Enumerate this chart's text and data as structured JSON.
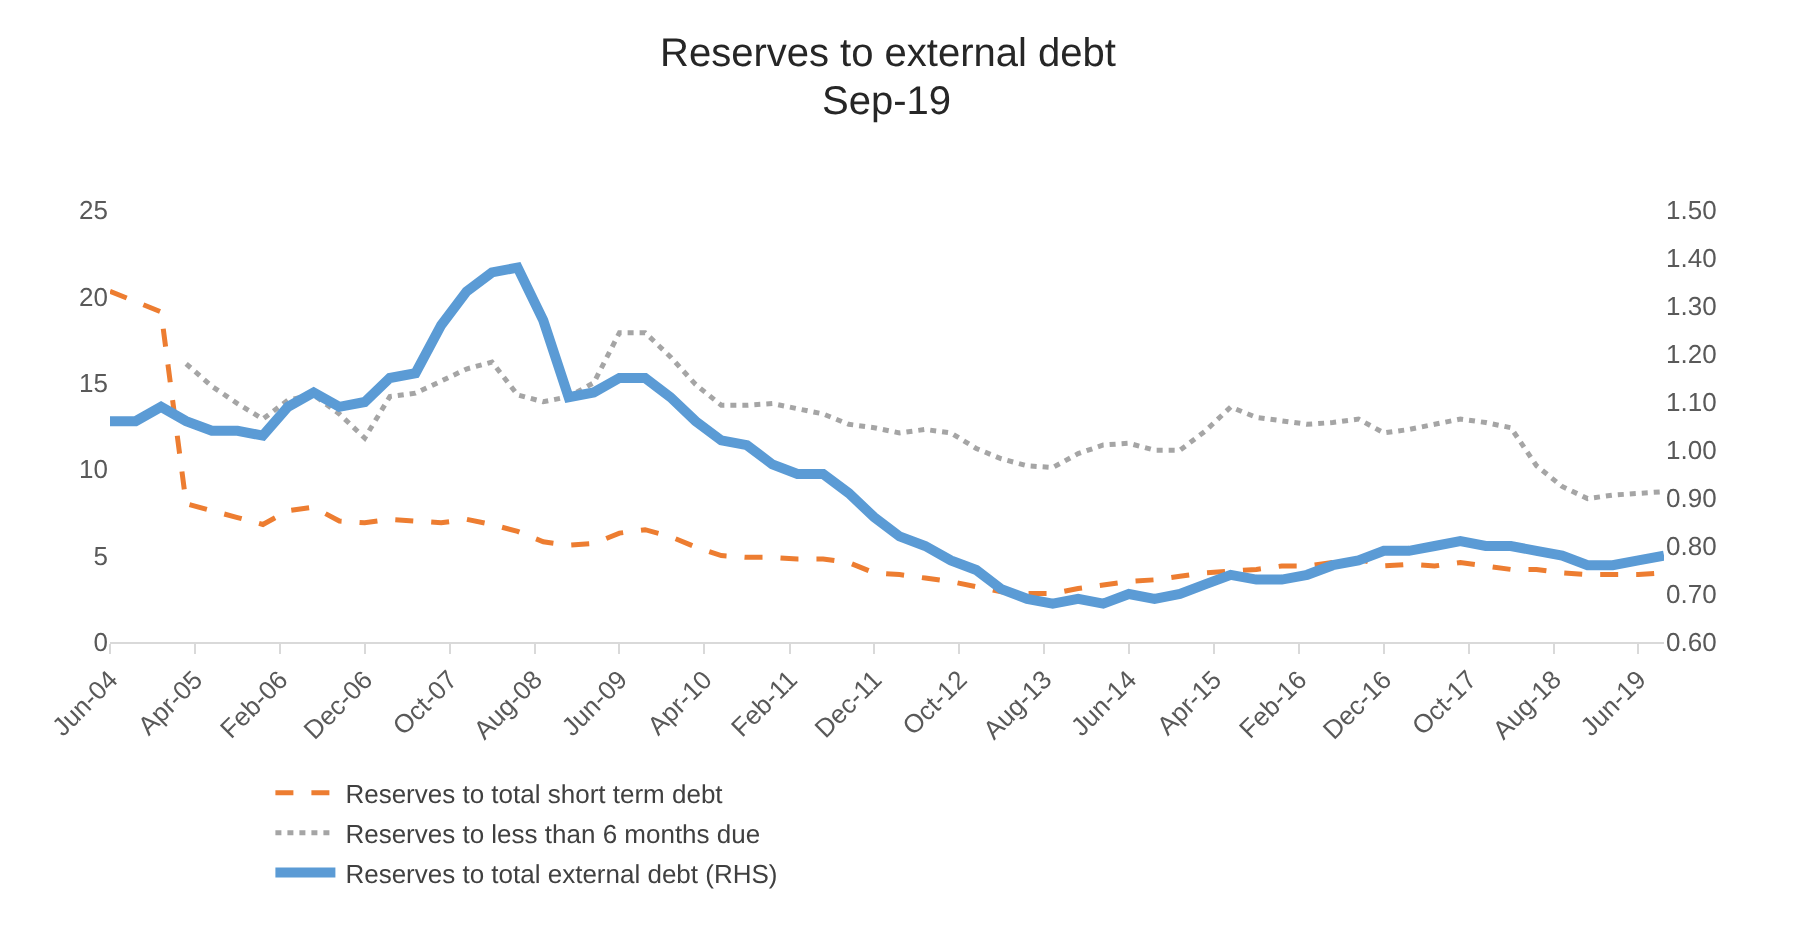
{
  "chart_data": {
    "type": "line",
    "title": "Reserves to external debt",
    "subtitle": "Sep-19",
    "x": [
      "2004-06",
      "2004-09",
      "2004-12",
      "2005-03",
      "2005-06",
      "2005-09",
      "2005-12",
      "2006-03",
      "2006-06",
      "2006-09",
      "2006-12",
      "2007-03",
      "2007-06",
      "2007-09",
      "2007-12",
      "2008-03",
      "2008-06",
      "2008-09",
      "2008-12",
      "2009-03",
      "2009-06",
      "2009-09",
      "2009-12",
      "2010-03",
      "2010-06",
      "2010-09",
      "2010-12",
      "2011-03",
      "2011-06",
      "2011-09",
      "2011-12",
      "2012-03",
      "2012-06",
      "2012-09",
      "2012-12",
      "2013-03",
      "2013-06",
      "2013-09",
      "2013-12",
      "2014-03",
      "2014-06",
      "2014-09",
      "2014-12",
      "2015-03",
      "2015-06",
      "2015-09",
      "2015-12",
      "2016-03",
      "2016-06",
      "2016-09",
      "2016-12",
      "2017-03",
      "2017-06",
      "2017-09",
      "2017-12",
      "2018-03",
      "2018-06",
      "2018-09",
      "2018-12",
      "2019-03",
      "2019-06",
      "2019-09"
    ],
    "series": [
      {
        "name": "Reserves to total short term debt",
        "color": "#ed7d31",
        "line_style": "dashed",
        "values": [
          20.3,
          19.7,
          19.1,
          8.0,
          7.6,
          7.2,
          6.8,
          7.6,
          7.8,
          7.0,
          6.9,
          7.1,
          7.0,
          6.9,
          7.1,
          6.8,
          6.4,
          5.8,
          5.6,
          5.7,
          6.3,
          6.5,
          6.1,
          5.5,
          5.0,
          4.9,
          4.9,
          4.8,
          4.8,
          4.6,
          4.0,
          3.9,
          3.7,
          3.5,
          3.2,
          2.9,
          2.8,
          2.8,
          3.1,
          3.3,
          3.5,
          3.6,
          3.8,
          4.0,
          4.1,
          4.2,
          4.4,
          4.4,
          4.6,
          4.8,
          4.4,
          4.5,
          4.4,
          4.6,
          4.4,
          4.2,
          4.2,
          4.0,
          3.9,
          3.9,
          3.9,
          4.0
        ]
      },
      {
        "name": "Reserves to less than 6 months due",
        "color": "#a5a5a5",
        "line_style": "dotted",
        "values": [
          null,
          null,
          null,
          16.1,
          14.8,
          13.8,
          12.9,
          14.0,
          14.3,
          13.2,
          11.8,
          14.2,
          14.4,
          15.1,
          15.8,
          16.2,
          14.3,
          13.9,
          14.2,
          15.0,
          17.9,
          17.9,
          16.5,
          14.9,
          13.7,
          13.7,
          13.8,
          13.5,
          13.2,
          12.6,
          12.4,
          12.1,
          12.3,
          12.1,
          11.2,
          10.6,
          10.2,
          10.1,
          10.9,
          11.4,
          11.5,
          11.1,
          11.1,
          12.2,
          13.6,
          13.0,
          12.8,
          12.6,
          12.7,
          12.9,
          12.1,
          12.3,
          12.6,
          12.9,
          12.7,
          12.4,
          10.2,
          9.0,
          8.3,
          8.5,
          8.6,
          8.7
        ]
      },
      {
        "name": "Reserves to total external debt (RHS)",
        "color": "#5b9bd5",
        "line_style": "solid",
        "axis": "y2",
        "values": [
          1.06,
          1.06,
          1.09,
          1.06,
          1.04,
          1.04,
          1.03,
          1.09,
          1.12,
          1.09,
          1.1,
          1.15,
          1.16,
          1.26,
          1.33,
          1.37,
          1.38,
          1.27,
          1.11,
          1.12,
          1.15,
          1.15,
          1.11,
          1.06,
          1.02,
          1.01,
          0.97,
          0.95,
          0.95,
          0.91,
          0.86,
          0.82,
          0.8,
          0.77,
          0.75,
          0.71,
          0.69,
          0.68,
          0.69,
          0.68,
          0.7,
          0.69,
          0.7,
          0.72,
          0.74,
          0.73,
          0.73,
          0.74,
          0.76,
          0.77,
          0.79,
          0.79,
          0.8,
          0.81,
          0.8,
          0.8,
          0.79,
          0.78,
          0.76,
          0.76,
          0.77,
          0.78
        ]
      }
    ],
    "xlim": [
      "2004-06",
      "2019-09"
    ],
    "xticks": [
      {
        "value": "2004-06",
        "label": "Jun-04"
      },
      {
        "value": "2005-04",
        "label": "Apr-05"
      },
      {
        "value": "2006-02",
        "label": "Feb-06"
      },
      {
        "value": "2006-12",
        "label": "Dec-06"
      },
      {
        "value": "2007-10",
        "label": "Oct-07"
      },
      {
        "value": "2008-08",
        "label": "Aug-08"
      },
      {
        "value": "2009-06",
        "label": "Jun-09"
      },
      {
        "value": "2010-04",
        "label": "Apr-10"
      },
      {
        "value": "2011-02",
        "label": "Feb-11"
      },
      {
        "value": "2011-12",
        "label": "Dec-11"
      },
      {
        "value": "2012-10",
        "label": "Oct-12"
      },
      {
        "value": "2013-08",
        "label": "Aug-13"
      },
      {
        "value": "2014-06",
        "label": "Jun-14"
      },
      {
        "value": "2015-04",
        "label": "Apr-15"
      },
      {
        "value": "2016-02",
        "label": "Feb-16"
      },
      {
        "value": "2016-12",
        "label": "Dec-16"
      },
      {
        "value": "2017-10",
        "label": "Oct-17"
      },
      {
        "value": "2018-08",
        "label": "Aug-18"
      },
      {
        "value": "2019-06",
        "label": "Jun-19"
      }
    ],
    "ylim": [
      0,
      25
    ],
    "yticks": [
      0,
      5,
      10,
      15,
      20,
      25
    ],
    "y2lim": [
      0.6,
      1.5
    ],
    "y2ticks": [
      {
        "value": 0.6,
        "label": "0.60"
      },
      {
        "value": 0.7,
        "label": "0.70"
      },
      {
        "value": 0.8,
        "label": "0.80"
      },
      {
        "value": 0.9,
        "label": "0.90"
      },
      {
        "value": 1.0,
        "label": "1.00"
      },
      {
        "value": 1.1,
        "label": "1.10"
      },
      {
        "value": 1.2,
        "label": "1.20"
      },
      {
        "value": 1.3,
        "label": "1.30"
      },
      {
        "value": 1.4,
        "label": "1.40"
      },
      {
        "value": 1.5,
        "label": "1.50"
      }
    ],
    "legend": "bottom"
  }
}
